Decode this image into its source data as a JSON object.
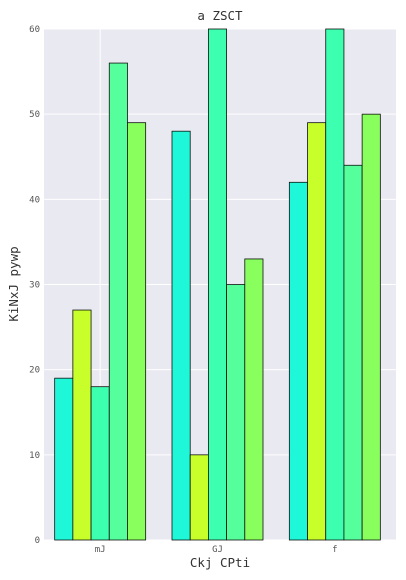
{
  "chart_data": {
    "type": "bar",
    "title": "a ZSCT",
    "xlabel": "Ckj CPti",
    "ylabel": "KiNxJ pywp",
    "categories": [
      "mJ",
      "GJ",
      "f"
    ],
    "ylim": [
      0,
      60
    ],
    "yticks": [
      0,
      10,
      20,
      30,
      40,
      50,
      60
    ],
    "grid": true,
    "legend": "none",
    "series": [
      {
        "values": [
          19,
          48,
          42
        ],
        "color": "#1ff8d8"
      },
      {
        "values": [
          27,
          10,
          49
        ],
        "color": "#c8ff2a"
      },
      {
        "values": [
          18,
          60,
          60
        ],
        "color": "#3dffb0"
      },
      {
        "values": [
          56,
          30,
          44
        ],
        "color": "#55ff9c"
      },
      {
        "values": [
          49,
          33,
          50
        ],
        "color": "#88ff5c"
      }
    ],
    "background": "#e9e9f1"
  }
}
